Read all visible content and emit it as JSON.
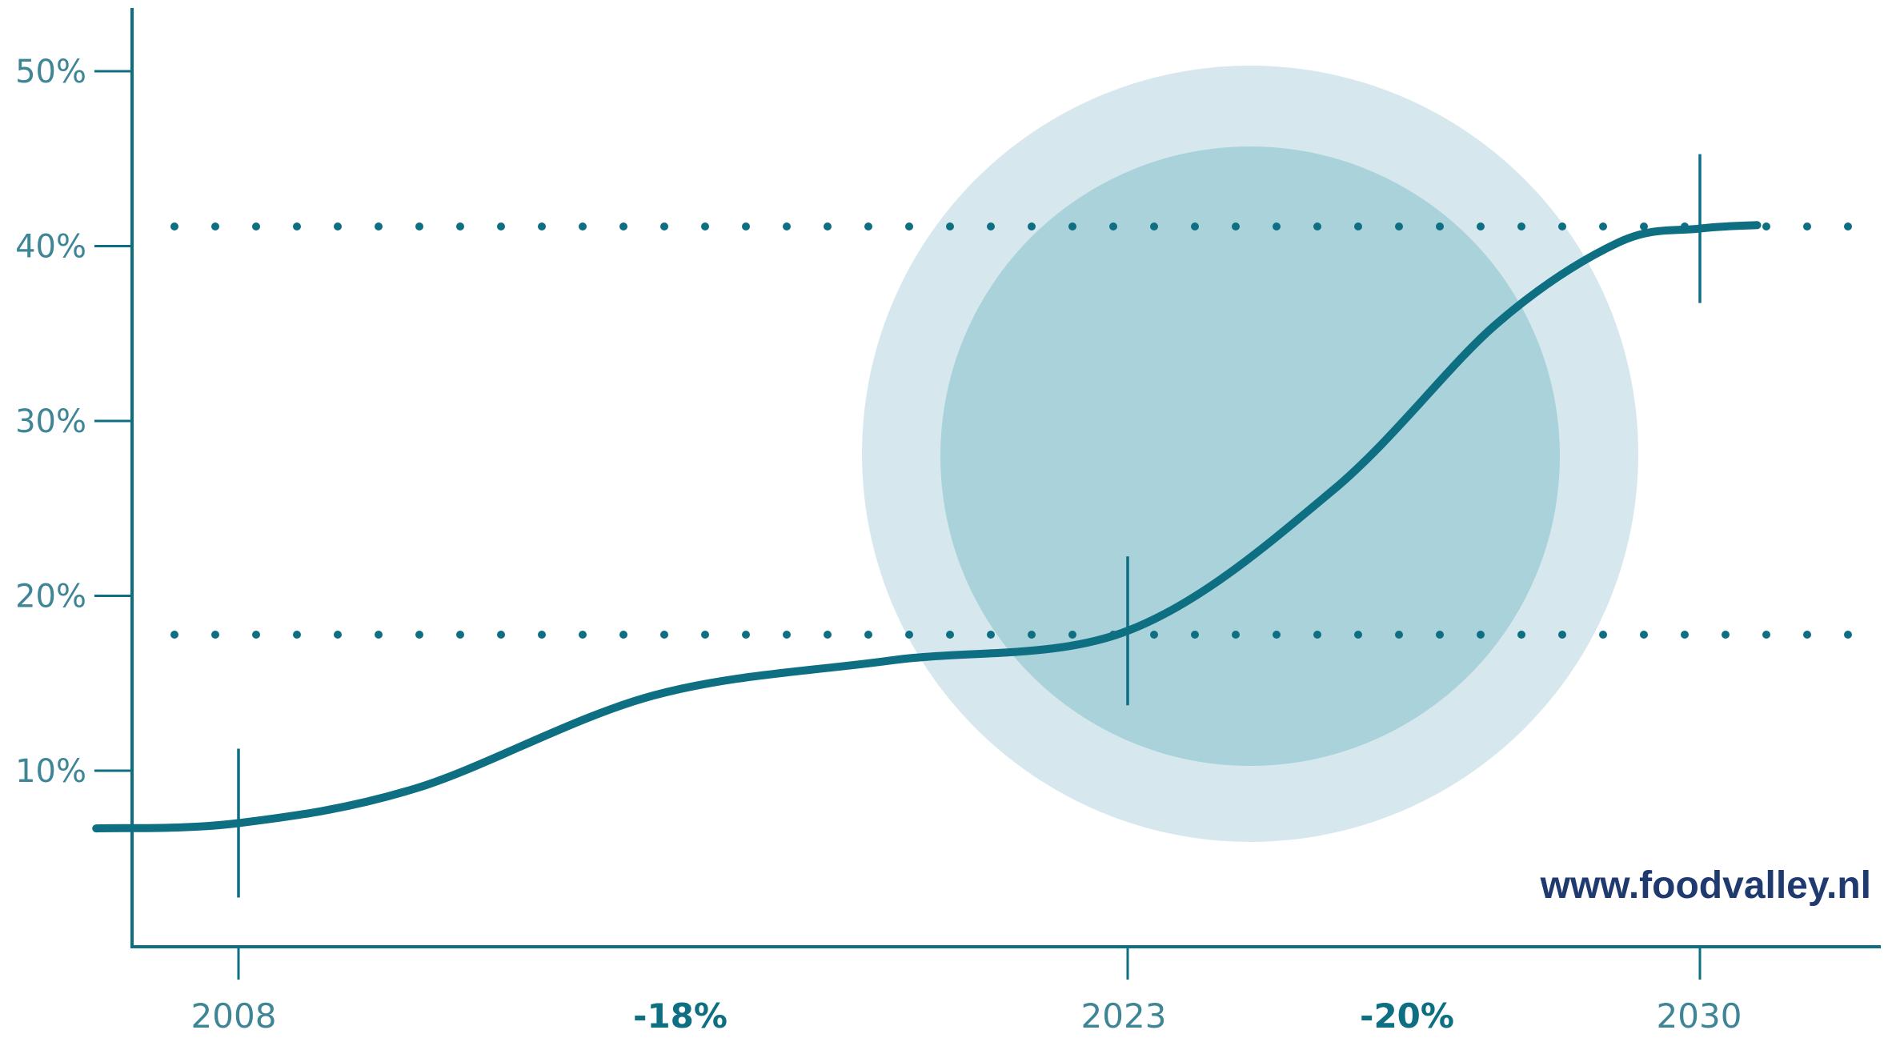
{
  "chart_data": {
    "type": "line",
    "y_ticks": [
      "10%",
      "20%",
      "30%",
      "40%",
      "50%"
    ],
    "y_tick_values": [
      10,
      20,
      30,
      40,
      50
    ],
    "ylim": [
      0,
      53
    ],
    "x_labels": [
      "2008",
      "-18%",
      "2023",
      "-20%",
      "2030"
    ],
    "series": [
      {
        "x": [
          2005.6,
          2008,
          2011,
          2015,
          2019,
          2023,
          2025.5,
          2027.5,
          2029,
          2030,
          2030.7
        ],
        "y": [
          6.7,
          7.0,
          9.0,
          14.3,
          16.3,
          18.0,
          26.0,
          35.5,
          40.2,
          41.0,
          41.2
        ]
      }
    ],
    "reference_lines": [
      18,
      41
    ],
    "markers": [
      {
        "year": 2008,
        "value": 7
      },
      {
        "year": 2023,
        "value": 18
      },
      {
        "year": 2030,
        "value": 41
      }
    ],
    "colors": {
      "line": "#0e6e82",
      "circle_outer": "#d6e8ee",
      "circle_inner": "#a9d2da",
      "tick_text": "#3e8596",
      "watermark": "#1f3a6e"
    },
    "grid": false
  },
  "watermark": "www.foodvalley.nl"
}
